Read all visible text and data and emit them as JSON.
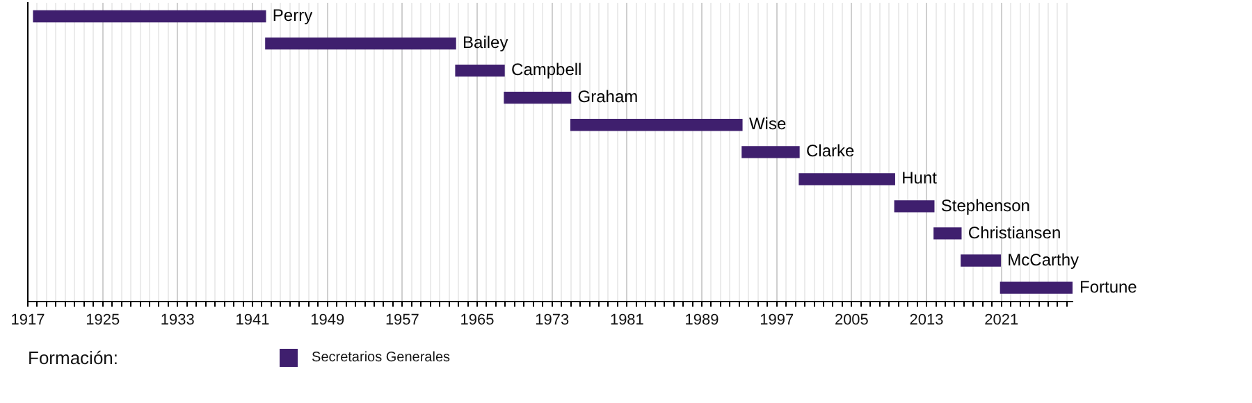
{
  "chart_data": {
    "type": "bar",
    "orientation": "horizontal",
    "tick_labels": "x",
    "grid": "x",
    "legend": "bottom left",
    "legend_title": "Formación:",
    "categories": [
      "Perry",
      "Bailey",
      "Campbell",
      "Graham",
      "Wise",
      "Clarke",
      "Hunt",
      "Stephenson",
      "Christiansen",
      "McCarthy",
      "Fortune"
    ],
    "series": [
      {
        "name": "Secretarios Generales",
        "color": "#3f1f6e",
        "base": [
          1917.6,
          1942.4,
          1962.7,
          1967.9,
          1975.0,
          1993.3,
          1999.4,
          2009.6,
          2013.8,
          2016.7,
          2020.9
        ],
        "values": [
          24.8,
          20.3,
          5.2,
          7.1,
          18.3,
          6.1,
          10.2,
          4.2,
          2.9,
          4.2,
          7.7
        ]
      }
    ],
    "xlim": [
      1917,
      2028.6
    ],
    "xticks": [
      1917,
      {
        "value": 1918,
        "label": null
      },
      {
        "value": 1919,
        "label": null
      },
      {
        "value": 1920,
        "label": null
      },
      {
        "value": 1921,
        "label": null
      },
      {
        "value": 1922,
        "label": null
      },
      {
        "value": 1923,
        "label": null
      },
      {
        "value": 1924,
        "label": null
      },
      1925,
      {
        "value": 1926,
        "label": null
      },
      {
        "value": 1927,
        "label": null
      },
      {
        "value": 1928,
        "label": null
      },
      {
        "value": 1929,
        "label": null
      },
      {
        "value": 1930,
        "label": null
      },
      {
        "value": 1931,
        "label": null
      },
      {
        "value": 1932,
        "label": null
      },
      1933,
      {
        "value": 1934,
        "label": null
      },
      {
        "value": 1935,
        "label": null
      },
      {
        "value": 1936,
        "label": null
      },
      {
        "value": 1937,
        "label": null
      },
      {
        "value": 1938,
        "label": null
      },
      {
        "value": 1939,
        "label": null
      },
      {
        "value": 1940,
        "label": null
      },
      1941,
      {
        "value": 1942,
        "label": null
      },
      {
        "value": 1943,
        "label": null
      },
      {
        "value": 1944,
        "label": null
      },
      {
        "value": 1945,
        "label": null
      },
      {
        "value": 1946,
        "label": null
      },
      {
        "value": 1947,
        "label": null
      },
      {
        "value": 1948,
        "label": null
      },
      1949,
      {
        "value": 1950,
        "label": null
      },
      {
        "value": 1951,
        "label": null
      },
      {
        "value": 1952,
        "label": null
      },
      {
        "value": 1953,
        "label": null
      },
      {
        "value": 1954,
        "label": null
      },
      {
        "value": 1955,
        "label": null
      },
      {
        "value": 1956,
        "label": null
      },
      1957,
      {
        "value": 1958,
        "label": null
      },
      {
        "value": 1959,
        "label": null
      },
      {
        "value": 1960,
        "label": null
      },
      {
        "value": 1961,
        "label": null
      },
      {
        "value": 1962,
        "label": null
      },
      {
        "value": 1963,
        "label": null
      },
      {
        "value": 1964,
        "label": null
      },
      1965,
      {
        "value": 1966,
        "label": null
      },
      {
        "value": 1967,
        "label": null
      },
      {
        "value": 1968,
        "label": null
      },
      {
        "value": 1969,
        "label": null
      },
      {
        "value": 1970,
        "label": null
      },
      {
        "value": 1971,
        "label": null
      },
      {
        "value": 1972,
        "label": null
      },
      1973,
      {
        "value": 1974,
        "label": null
      },
      {
        "value": 1975,
        "label": null
      },
      {
        "value": 1976,
        "label": null
      },
      {
        "value": 1977,
        "label": null
      },
      {
        "value": 1978,
        "label": null
      },
      {
        "value": 1979,
        "label": null
      },
      {
        "value": 1980,
        "label": null
      },
      1981,
      {
        "value": 1982,
        "label": null
      },
      {
        "value": 1983,
        "label": null
      },
      {
        "value": 1984,
        "label": null
      },
      {
        "value": 1985,
        "label": null
      },
      {
        "value": 1986,
        "label": null
      },
      {
        "value": 1987,
        "label": null
      },
      {
        "value": 1988,
        "label": null
      },
      1989,
      {
        "value": 1990,
        "label": null
      },
      {
        "value": 1991,
        "label": null
      },
      {
        "value": 1992,
        "label": null
      },
      {
        "value": 1993,
        "label": null
      },
      {
        "value": 1994,
        "label": null
      },
      {
        "value": 1995,
        "label": null
      },
      {
        "value": 1996,
        "label": null
      },
      1997,
      {
        "value": 1998,
        "label": null
      },
      {
        "value": 1999,
        "label": null
      },
      {
        "value": 2000,
        "label": null
      },
      {
        "value": 2001,
        "label": null
      },
      {
        "value": 2002,
        "label": null
      },
      {
        "value": 2003,
        "label": null
      },
      {
        "value": 2004,
        "label": null
      },
      2005,
      {
        "value": 2006,
        "label": null
      },
      {
        "value": 2007,
        "label": null
      },
      {
        "value": 2008,
        "label": null
      },
      {
        "value": 2009,
        "label": null
      },
      {
        "value": 2010,
        "label": null
      },
      {
        "value": 2011,
        "label": null
      },
      {
        "value": 2012,
        "label": null
      },
      2013,
      {
        "value": 2014,
        "label": null
      },
      {
        "value": 2015,
        "label": null
      },
      {
        "value": 2016,
        "label": null
      },
      {
        "value": 2017,
        "label": null
      },
      {
        "value": 2018,
        "label": null
      },
      {
        "value": 2019,
        "label": null
      },
      {
        "value": 2020,
        "label": null
      },
      2021,
      {
        "value": 2022,
        "label": null
      },
      {
        "value": 2023,
        "label": null
      },
      {
        "value": 2024,
        "label": null
      },
      {
        "value": 2025,
        "label": null
      },
      {
        "value": 2026,
        "label": null
      },
      {
        "value": 2027,
        "label": null
      },
      {
        "value": 2028,
        "label": null
      }
    ]
  }
}
